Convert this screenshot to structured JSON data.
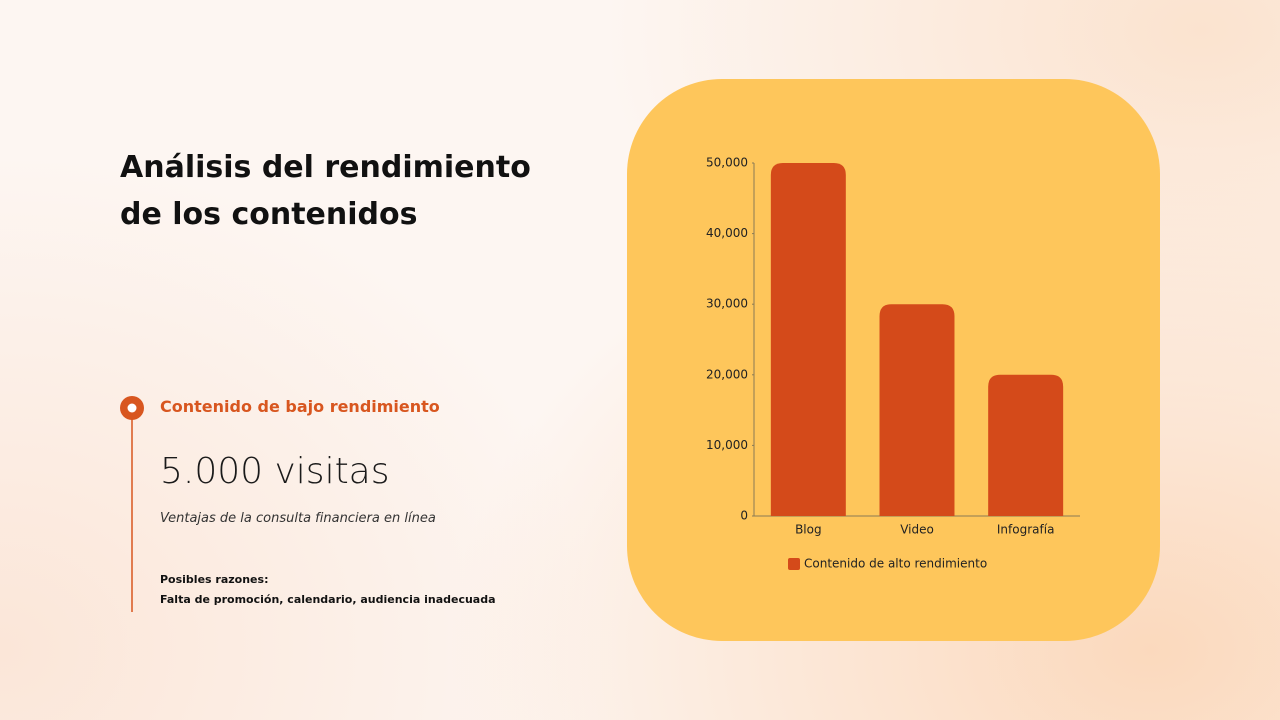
{
  "slide": {
    "title": "Análisis del rendimiento de los contenidos",
    "highlight": {
      "label": "Contenido de bajo rendimiento",
      "metric": "5.000 visitas",
      "description": "Ventajas de la consulta financiera en línea",
      "reasons_title": "Posibles razones:",
      "reasons": "Falta de promoción, calendario, audiencia inadecuada"
    }
  },
  "chart_data": {
    "type": "bar",
    "categories": [
      "Blog",
      "Video",
      "Infografía"
    ],
    "series": [
      {
        "name": "Contenido de alto rendimiento",
        "color": "#d44a1a",
        "values": [
          50000,
          30000,
          20000
        ]
      }
    ],
    "ylim": [
      0,
      50000
    ],
    "yticks": [
      0,
      {
        "value": 10000,
        "label": "10,000"
      },
      {
        "value": 20000,
        "label": "20,000"
      },
      {
        "value": 30000,
        "label": "30,000"
      },
      {
        "value": 40000,
        "label": "40,000"
      },
      {
        "value": 50000,
        "label": "50,000"
      }
    ],
    "grid": false,
    "legend": "bottom"
  }
}
